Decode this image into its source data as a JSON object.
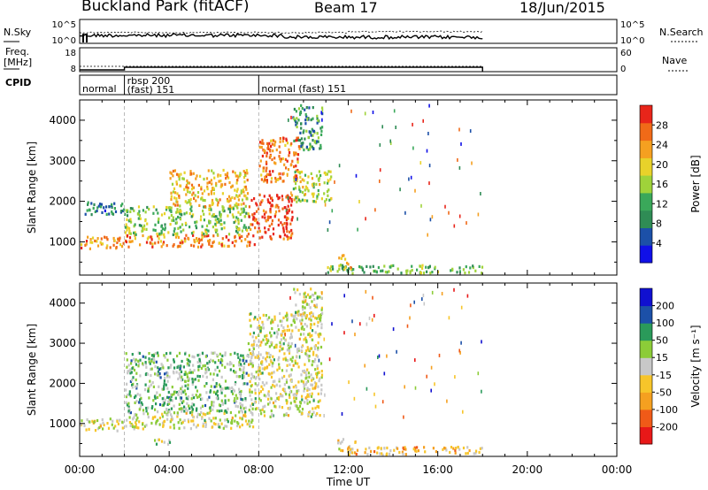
{
  "header": {
    "title": "Buckland Park (fitACF)",
    "beam": "Beam 17",
    "date": "18/Jun/2015"
  },
  "status_panels": {
    "nsky_label": "N.Sky",
    "nsky_ticks": [
      "10^5",
      "10^0"
    ],
    "nsearch_label": "N.Search",
    "nsearch_ticks": [
      "10^5",
      "10^0"
    ],
    "freq_label": "Freq.",
    "freq_unit": "[MHz]",
    "freq_ticks": [
      "18",
      "8"
    ],
    "nave_label": "Nave",
    "nave_ticks": [
      "60",
      "0"
    ],
    "cpid_label": "CPID",
    "cpid_segments": [
      {
        "label": "normal",
        "start": 0.0,
        "end": 2.0
      },
      {
        "label": "rbsp 200\n(fast) 151",
        "start": 2.0,
        "end": 8.0
      },
      {
        "label": "normal (fast) 151",
        "start": 8.0,
        "end": 24.0
      }
    ]
  },
  "chart_data": [
    {
      "type": "heatmap",
      "title": "",
      "xlabel": "",
      "ylabel": "Slant Range [km]",
      "xlim": [
        0,
        24
      ],
      "ylim": [
        180,
        4500
      ],
      "yticks": [
        1000,
        2000,
        3000,
        4000
      ],
      "colorbar": {
        "label": "Power [dB]",
        "range": [
          0,
          30
        ],
        "ticks": [
          "4",
          "8",
          "12",
          "16",
          "20",
          "24",
          "28"
        ],
        "colors": [
          "#1010e8",
          "#1c50a8",
          "#2f8c55",
          "#3aa85a",
          "#9fd33a",
          "#e8d22a",
          "#f5a020",
          "#f06a18",
          "#e8251a"
        ]
      },
      "echo_regions": [
        {
          "x": [
            0.0,
            2.0
          ],
          "y": [
            850,
            1150
          ],
          "value": 22
        },
        {
          "x": [
            0.2,
            2.0
          ],
          "y": [
            1700,
            2050
          ],
          "value": 8
        },
        {
          "x": [
            2.0,
            7.8
          ],
          "y": [
            900,
            1200
          ],
          "value": 24
        },
        {
          "x": [
            2.0,
            7.6
          ],
          "y": [
            1200,
            1900
          ],
          "value": 14
        },
        {
          "x": [
            4.0,
            7.5
          ],
          "y": [
            1900,
            2800
          ],
          "value": 20
        },
        {
          "x": [
            7.5,
            9.5
          ],
          "y": [
            1100,
            2200
          ],
          "value": 26
        },
        {
          "x": [
            8.0,
            9.8
          ],
          "y": [
            2500,
            3600
          ],
          "value": 24
        },
        {
          "x": [
            9.5,
            10.8
          ],
          "y": [
            3300,
            4400
          ],
          "value": 10
        },
        {
          "x": [
            9.5,
            11.2
          ],
          "y": [
            2000,
            2800
          ],
          "value": 16
        },
        {
          "x": [
            11.0,
            18.0
          ],
          "y": [
            250,
            450
          ],
          "value": 12
        },
        {
          "x": [
            11.5,
            12.2
          ],
          "y": [
            350,
            700
          ],
          "value": 20
        }
      ]
    },
    {
      "type": "heatmap",
      "title": "",
      "xlabel": "Time UT",
      "ylabel": "Slant Range [km]",
      "xlim": [
        0,
        24
      ],
      "ylim": [
        180,
        4500
      ],
      "yticks": [
        1000,
        2000,
        3000,
        4000
      ],
      "xticks": [
        "00:00",
        "04:00",
        "08:00",
        "12:00",
        "16:00",
        "20:00",
        "00:00"
      ],
      "colorbar": {
        "label": "Velocity [m s⁻¹]",
        "range": [
          -250,
          250
        ],
        "ticks": [
          "-200",
          "-100",
          "-50",
          "-15",
          "15",
          "50",
          "100",
          "200"
        ],
        "colors": [
          "#e81818",
          "#f05a18",
          "#f5a020",
          "#f7c52a",
          "#c8c8c8",
          "#8ccc38",
          "#2a9a5a",
          "#1c50a8",
          "#1010d0"
        ]
      },
      "echo_regions": [
        {
          "x": [
            0.0,
            2.0
          ],
          "y": [
            850,
            1150
          ],
          "value": 0
        },
        {
          "x": [
            2.0,
            7.8
          ],
          "y": [
            900,
            1300
          ],
          "value": 0
        },
        {
          "x": [
            2.0,
            7.5
          ],
          "y": [
            1300,
            2800
          ],
          "value": 60
        },
        {
          "x": [
            7.5,
            10.8
          ],
          "y": [
            1200,
            3800
          ],
          "value": 0
        },
        {
          "x": [
            9.5,
            10.8
          ],
          "y": [
            3500,
            4400
          ],
          "value": 0
        },
        {
          "x": [
            11.5,
            12.3
          ],
          "y": [
            300,
            650
          ],
          "value": -40
        },
        {
          "x": [
            12.0,
            18.0
          ],
          "y": [
            250,
            450
          ],
          "value": -60
        },
        {
          "x": [
            3.3,
            4.0
          ],
          "y": [
            500,
            700
          ],
          "value": 40
        }
      ]
    }
  ]
}
